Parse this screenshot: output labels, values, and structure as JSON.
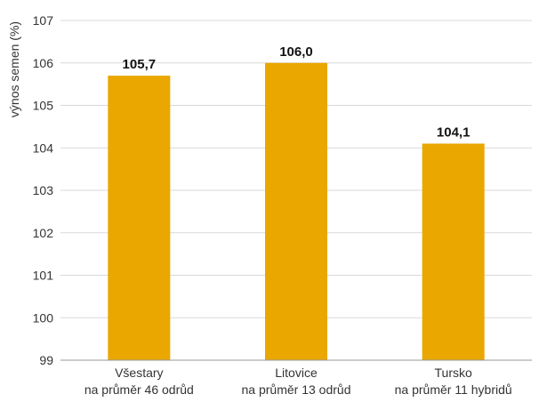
{
  "chart_data": {
    "type": "bar",
    "ylabel": "výnos semen (%)",
    "xlabel": "",
    "ylim": [
      99,
      107
    ],
    "yticks": [
      99,
      100,
      101,
      102,
      103,
      104,
      105,
      106,
      107
    ],
    "ytick_labels": [
      "99",
      "100",
      "101",
      "102",
      "103",
      "104",
      "105",
      "106",
      "107"
    ],
    "grid": true,
    "legend": "none",
    "bar_color": "#E9A700",
    "categories": [
      {
        "line1": "Všestary",
        "line2": "na průměr 46 odrůd"
      },
      {
        "line1": "Litovice",
        "line2": "na průměr 13 odrůd"
      },
      {
        "line1": "Tursko",
        "line2": "na průměr 11 hybridů"
      }
    ],
    "values": [
      105.7,
      106.0,
      104.1
    ],
    "value_labels": [
      "105,7",
      "106,0",
      "104,1"
    ]
  }
}
